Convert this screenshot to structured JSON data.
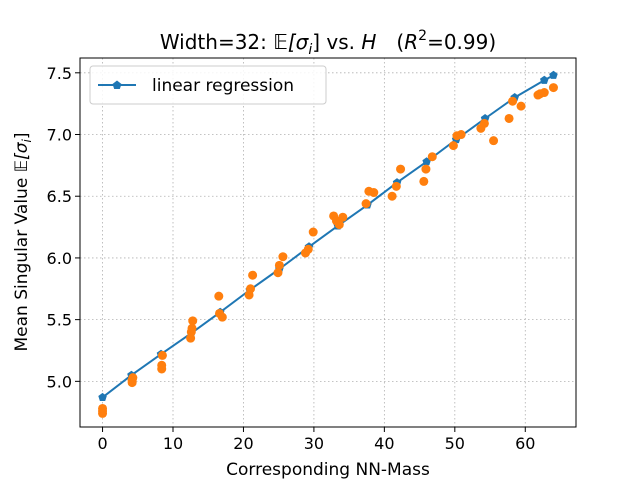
{
  "chart_data": {
    "type": "scatter",
    "title_prefix": "Width=32: ",
    "title_math_lhs": "𝔼[σ",
    "title_math_sub": "i",
    "title_math_rhs": "] vs. ",
    "title_math_H": "H",
    "title_r2_open": "(",
    "title_r2_R": "R",
    "title_r2_sup": "2",
    "title_r2_value": "=0.99)",
    "xlabel": "Corresponding NN-Mass",
    "ylabel_text": "Mean Singular Value ",
    "ylabel_math_lhs": "𝔼[σ",
    "ylabel_math_sub": "i",
    "ylabel_math_rhs": "]",
    "xlim": [
      -3.2,
      67.2
    ],
    "ylim": [
      4.63,
      7.62
    ],
    "xticks": [
      0,
      10,
      20,
      30,
      40,
      50,
      60
    ],
    "yticks": [
      5.0,
      5.5,
      6.0,
      6.5,
      7.0,
      7.5
    ],
    "ytick_labels": [
      "5.0",
      "5.5",
      "6.0",
      "6.5",
      "7.0",
      "7.5"
    ],
    "grid": true,
    "legend_position": "upper-left",
    "legend_label": "linear regression",
    "colors": {
      "regression": "#1f77b4",
      "observed": "#ff7f0e",
      "grid": "#b0b0b0"
    },
    "regression": {
      "name": "linear regression",
      "x": [
        0,
        4.1,
        8.3,
        12.6,
        16.7,
        20.9,
        25.1,
        29.3,
        33.4,
        37.6,
        41.8,
        46.0,
        50.2,
        54.3,
        58.5,
        62.7,
        64.0
      ],
      "y": [
        4.87,
        5.05,
        5.22,
        5.39,
        5.56,
        5.74,
        5.91,
        6.09,
        6.26,
        6.43,
        6.61,
        6.78,
        6.96,
        7.13,
        7.3,
        7.44,
        7.48
      ]
    },
    "observed": {
      "x": [
        0,
        0,
        0,
        4.2,
        4.2,
        4.3,
        8.4,
        8.4,
        8.5,
        12.5,
        12.6,
        12.8,
        12.7,
        16.5,
        16.6,
        17.0,
        20.8,
        21.0,
        21.3,
        24.9,
        25.1,
        25.6,
        28.8,
        29.2,
        29.9,
        32.8,
        33.2,
        33.6,
        34.1,
        37.4,
        37.8,
        38.5,
        41.1,
        41.7,
        42.3,
        45.6,
        45.9,
        46.8,
        49.8,
        50.3,
        50.9,
        53.7,
        54.2,
        55.5,
        57.7,
        58.2,
        59.4,
        61.8,
        62.1,
        62.7,
        64.0
      ],
      "y": [
        4.74,
        4.76,
        4.78,
        4.99,
        5.01,
        5.03,
        5.1,
        5.13,
        5.21,
        5.35,
        5.4,
        5.49,
        5.43,
        5.69,
        5.55,
        5.52,
        5.7,
        5.75,
        5.86,
        5.88,
        5.94,
        6.01,
        6.04,
        6.07,
        6.21,
        6.34,
        6.3,
        6.27,
        6.33,
        6.44,
        6.54,
        6.53,
        6.5,
        6.58,
        6.72,
        6.62,
        6.72,
        6.82,
        6.91,
        6.99,
        7.0,
        7.05,
        7.09,
        6.95,
        7.13,
        7.27,
        7.23,
        7.32,
        7.33,
        7.34,
        7.38
      ]
    }
  }
}
